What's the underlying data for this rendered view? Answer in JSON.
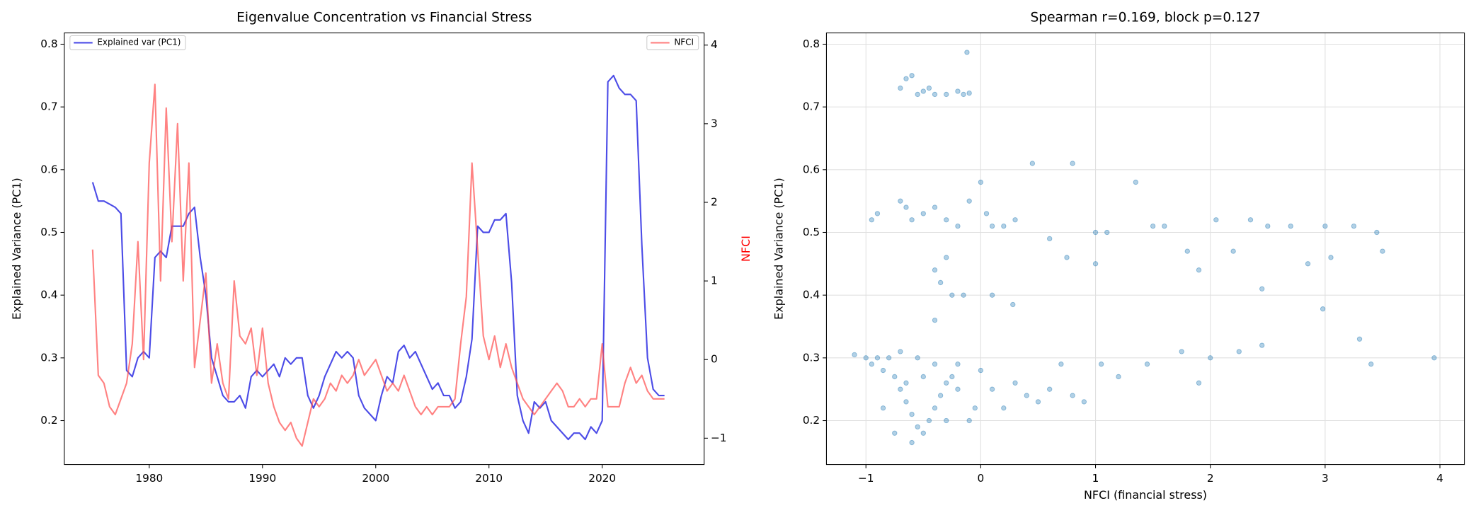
{
  "chart_data": [
    {
      "type": "line",
      "title": "Eigenvalue Concentration vs Financial Stress",
      "ylabel": "Explained Variance (PC1)",
      "y2label": "NFCI",
      "y2label_color": "red",
      "xlim": [
        1972.5,
        2029.0
      ],
      "xticks": [
        1980,
        1990,
        2000,
        2010,
        2020
      ],
      "ylim": [
        0.13,
        0.818
      ],
      "yticks": [
        0.2,
        0.3,
        0.4,
        0.5,
        0.6,
        0.7,
        0.8
      ],
      "y2lim": [
        -1.335,
        4.155
      ],
      "y2ticks": [
        {
          "value": -1,
          "label": "−1"
        },
        0,
        1,
        2,
        3,
        4
      ],
      "x": [
        1975.0,
        1975.5,
        1976.0,
        1976.5,
        1977.0,
        1977.5,
        1978.0,
        1978.5,
        1979.0,
        1979.5,
        1980.0,
        1980.5,
        1981.0,
        1981.5,
        1982.0,
        1982.5,
        1983.0,
        1983.5,
        1984.0,
        1984.5,
        1985.0,
        1985.5,
        1986.0,
        1986.5,
        1987.0,
        1987.5,
        1988.0,
        1988.5,
        1989.0,
        1989.5,
        1990.0,
        1990.5,
        1991.0,
        1991.5,
        1992.0,
        1992.5,
        1993.0,
        1993.5,
        1994.0,
        1994.5,
        1995.0,
        1995.5,
        1996.0,
        1996.5,
        1997.0,
        1997.5,
        1998.0,
        1998.5,
        1999.0,
        1999.5,
        2000.0,
        2000.5,
        2001.0,
        2001.5,
        2002.0,
        2002.5,
        2003.0,
        2003.5,
        2004.0,
        2004.5,
        2005.0,
        2005.5,
        2006.0,
        2006.5,
        2007.0,
        2007.5,
        2008.0,
        2008.5,
        2009.0,
        2009.5,
        2010.0,
        2010.5,
        2011.0,
        2011.5,
        2012.0,
        2012.5,
        2013.0,
        2013.5,
        2014.0,
        2014.5,
        2015.0,
        2015.5,
        2016.0,
        2016.5,
        2017.0,
        2017.5,
        2018.0,
        2018.5,
        2019.0,
        2019.5,
        2020.0,
        2020.5,
        2021.0,
        2021.5,
        2022.0,
        2022.5,
        2023.0,
        2023.5,
        2024.0,
        2024.5,
        2025.0,
        2025.5
      ],
      "series": [
        {
          "name": "Explained var (PC1)",
          "color": "#0000dd",
          "axis": "y",
          "legend_loc": "upper left",
          "values": [
            0.58,
            0.55,
            0.55,
            0.545,
            0.54,
            0.53,
            0.28,
            0.27,
            0.3,
            0.31,
            0.3,
            0.46,
            0.47,
            0.46,
            0.51,
            0.51,
            0.51,
            0.53,
            0.54,
            0.46,
            0.4,
            0.3,
            0.27,
            0.24,
            0.23,
            0.23,
            0.24,
            0.22,
            0.27,
            0.28,
            0.27,
            0.28,
            0.29,
            0.27,
            0.3,
            0.29,
            0.3,
            0.3,
            0.24,
            0.22,
            0.24,
            0.27,
            0.29,
            0.31,
            0.3,
            0.31,
            0.3,
            0.24,
            0.22,
            0.21,
            0.2,
            0.24,
            0.27,
            0.26,
            0.31,
            0.32,
            0.3,
            0.31,
            0.29,
            0.27,
            0.25,
            0.26,
            0.24,
            0.24,
            0.22,
            0.23,
            0.27,
            0.33,
            0.51,
            0.5,
            0.5,
            0.52,
            0.52,
            0.53,
            0.42,
            0.24,
            0.2,
            0.18,
            0.23,
            0.22,
            0.23,
            0.2,
            0.19,
            0.18,
            0.17,
            0.18,
            0.18,
            0.17,
            0.19,
            0.18,
            0.2,
            0.74,
            0.75,
            0.73,
            0.72,
            0.72,
            0.71,
            0.48,
            0.3,
            0.25,
            0.24,
            0.24
          ]
        },
        {
          "name": "NFCI",
          "color": "#ff4d4d",
          "axis": "y2",
          "legend_loc": "upper right",
          "values": [
            1.4,
            -0.2,
            -0.3,
            -0.6,
            -0.7,
            -0.5,
            -0.3,
            0.2,
            1.5,
            0.0,
            2.5,
            3.5,
            1.0,
            3.2,
            1.5,
            3.0,
            1.0,
            2.5,
            -0.1,
            0.5,
            1.1,
            -0.3,
            0.2,
            -0.3,
            -0.5,
            1.0,
            0.3,
            0.2,
            0.4,
            -0.2,
            0.4,
            -0.3,
            -0.6,
            -0.8,
            -0.9,
            -0.8,
            -1.0,
            -1.1,
            -0.8,
            -0.5,
            -0.6,
            -0.5,
            -0.3,
            -0.4,
            -0.2,
            -0.3,
            -0.2,
            0.0,
            -0.2,
            -0.1,
            0.0,
            -0.2,
            -0.4,
            -0.3,
            -0.4,
            -0.2,
            -0.4,
            -0.6,
            -0.7,
            -0.6,
            -0.7,
            -0.6,
            -0.6,
            -0.6,
            -0.5,
            0.2,
            0.8,
            2.5,
            1.4,
            0.3,
            0.0,
            0.3,
            -0.1,
            0.2,
            -0.1,
            -0.3,
            -0.5,
            -0.6,
            -0.7,
            -0.6,
            -0.5,
            -0.4,
            -0.3,
            -0.4,
            -0.6,
            -0.6,
            -0.5,
            -0.6,
            -0.5,
            -0.5,
            0.2,
            -0.6,
            -0.6,
            -0.6,
            -0.3,
            -0.1,
            -0.3,
            -0.2,
            -0.4,
            -0.5,
            -0.5,
            -0.5
          ]
        }
      ]
    },
    {
      "type": "scatter",
      "title": "Spearman r=0.169, block p=0.127",
      "xlabel": "NFCI (financial stress)",
      "ylabel": "Explained Variance (PC1)",
      "color": "#1f77b4",
      "grid": true,
      "xlim": [
        -1.344,
        4.213
      ],
      "xticks": [
        {
          "value": -1,
          "label": "−1"
        },
        0,
        1,
        2,
        3,
        4
      ],
      "ylim": [
        0.13,
        0.818
      ],
      "yticks": [
        0.2,
        0.3,
        0.4,
        0.5,
        0.6,
        0.7,
        0.8
      ],
      "x": [
        -0.65,
        -0.6,
        -0.7,
        -0.55,
        -0.5,
        -0.4,
        -0.3,
        -0.2,
        -0.15,
        -0.1,
        -0.12,
        -0.45,
        -0.95,
        -0.9,
        -0.7,
        -0.65,
        -0.6,
        -0.5,
        -0.4,
        -0.3,
        -0.2,
        -0.1,
        0,
        0.05,
        0.1,
        0.2,
        0.3,
        0.45,
        0.6,
        0.8,
        0.75,
        1.0,
        1.1,
        1.35,
        1.5,
        1.6,
        1.8,
        1.9,
        2.05,
        2.2,
        2.35,
        2.5,
        2.7,
        2.85,
        3.0,
        3.05,
        3.25,
        3.45,
        3.5,
        2.45,
        1.0,
        -0.4,
        -0.35,
        -0.3,
        -0.25,
        -0.4,
        -0.15,
        0.1,
        0.28,
        2.98,
        -1.1,
        -1.0,
        -0.95,
        -0.9,
        -0.85,
        -0.8,
        -0.75,
        -0.7,
        -0.65,
        -0.6,
        -0.55,
        -0.5,
        -0.45,
        -0.4,
        -0.35,
        -0.3,
        -0.25,
        -0.2,
        -0.1,
        -0.05,
        0.0,
        0.1,
        0.2,
        0.3,
        0.4,
        0.5,
        0.6,
        0.7,
        0.8,
        0.9,
        1.05,
        1.2,
        1.45,
        1.9,
        2.0,
        2.25,
        2.45,
        1.75,
        3.3,
        3.4,
        3.95,
        -0.75,
        -0.6,
        -0.55,
        -0.7,
        -0.85,
        -0.5,
        -0.4,
        -0.65,
        -0.3,
        -0.2
      ],
      "values": [
        0.745,
        0.75,
        0.73,
        0.72,
        0.725,
        0.72,
        0.72,
        0.725,
        0.72,
        0.722,
        0.787,
        0.73,
        0.52,
        0.53,
        0.55,
        0.54,
        0.52,
        0.53,
        0.54,
        0.52,
        0.51,
        0.55,
        0.58,
        0.53,
        0.51,
        0.51,
        0.52,
        0.61,
        0.49,
        0.61,
        0.46,
        0.5,
        0.5,
        0.58,
        0.51,
        0.51,
        0.47,
        0.44,
        0.52,
        0.47,
        0.52,
        0.51,
        0.51,
        0.45,
        0.51,
        0.46,
        0.51,
        0.5,
        0.47,
        0.41,
        0.45,
        0.44,
        0.42,
        0.46,
        0.4,
        0.36,
        0.4,
        0.4,
        0.385,
        0.378,
        0.305,
        0.3,
        0.29,
        0.3,
        0.28,
        0.3,
        0.27,
        0.25,
        0.23,
        0.21,
        0.19,
        0.18,
        0.2,
        0.22,
        0.24,
        0.26,
        0.27,
        0.25,
        0.2,
        0.22,
        0.28,
        0.25,
        0.22,
        0.26,
        0.24,
        0.23,
        0.25,
        0.29,
        0.24,
        0.23,
        0.29,
        0.27,
        0.29,
        0.26,
        0.3,
        0.31,
        0.32,
        0.31,
        0.33,
        0.29,
        0.3,
        0.18,
        0.165,
        0.3,
        0.31,
        0.22,
        0.27,
        0.29,
        0.26,
        0.2,
        0.29
      ]
    }
  ]
}
